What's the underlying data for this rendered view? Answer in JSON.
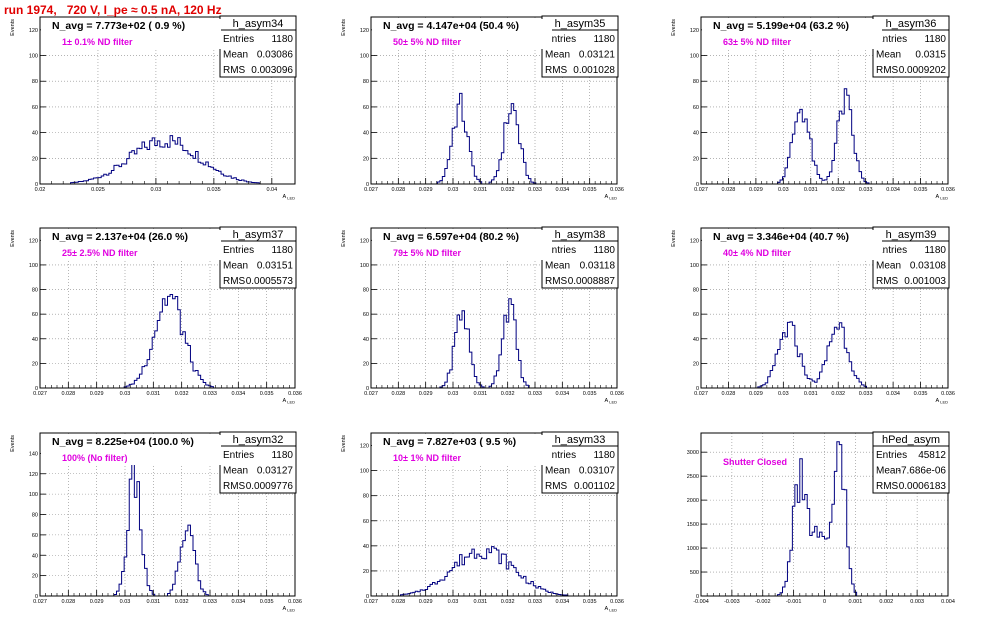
{
  "page": {
    "run_title": "run 1974,   720 V, I_pe ≈ 0.5 nA, 120 Hz",
    "colors": {
      "hist": "#000080",
      "title": "#e00000",
      "annotation": "#e000e0",
      "axis": "#000000",
      "grid": "#888888"
    }
  },
  "chart_data": [
    {
      "type": "histogram",
      "name": "h_asym34",
      "stats": {
        "Entries": "1180",
        "Mean": "0.03086",
        "RMS": "0.003096"
      },
      "navg": "N_avg = 7.773e+02 ( 0.9 %)",
      "annotation": "1± 0.1% ND filter",
      "xlabel": "A_LED",
      "ylabel": "Events",
      "xlim": [
        0.02,
        0.042
      ],
      "ylim": [
        0,
        130
      ],
      "xticks": [
        0.02,
        0.025,
        0.03,
        0.035,
        0.04
      ],
      "xticklabels": [
        "0.02",
        "0.025",
        "0.03",
        "0.035",
        "0.04"
      ],
      "yticks": [
        0,
        20,
        40,
        60,
        80,
        100,
        120
      ],
      "yticklabels": [
        "0",
        "20",
        "40",
        "60",
        "80",
        "100",
        "120"
      ],
      "grid": true,
      "shape": {
        "peaks": [
          {
            "mu": 0.0308,
            "sigma": 0.003,
            "h": 34
          }
        ]
      }
    },
    {
      "type": "histogram",
      "name": "h_asym35",
      "stats": {
        "Entries": "1180",
        "Mean": "0.03121",
        "RMS": "0.001028"
      },
      "navg": "N_avg = 4.147e+04 (50.4 %)",
      "annotation": "50± 5% ND filter",
      "xlabel": "A_LED",
      "ylabel": "Events",
      "xlim": [
        0.027,
        0.036
      ],
      "ylim": [
        0,
        130
      ],
      "xticks": [
        0.027,
        0.028,
        0.029,
        0.03,
        0.031,
        0.032,
        0.033,
        0.034,
        0.035,
        0.036
      ],
      "xticklabels": [
        "0.027",
        "0.028",
        "0.029",
        "0.03",
        "0.031",
        "0.032",
        "0.033",
        "0.034",
        "0.035",
        "0.036"
      ],
      "yticks": [
        0,
        20,
        40,
        60,
        80,
        100,
        120
      ],
      "yticklabels": [
        "0",
        "20",
        "40",
        "60",
        "80",
        "100",
        "120"
      ],
      "grid": true,
      "shape": {
        "peaks": [
          {
            "mu": 0.03025,
            "sigma": 0.00028,
            "h": 60
          },
          {
            "mu": 0.03215,
            "sigma": 0.00028,
            "h": 60
          }
        ]
      }
    },
    {
      "type": "histogram",
      "name": "h_asym36",
      "stats": {
        "Entries": "1180",
        "Mean": "0.0315",
        "RMS": "0.0009202"
      },
      "navg": "N_avg = 5.199e+04 (63.2 %)",
      "annotation": "63± 5% ND filter",
      "xlabel": "A_LED",
      "ylabel": "Events",
      "xlim": [
        0.027,
        0.036
      ],
      "ylim": [
        0,
        130
      ],
      "xticks": [
        0.027,
        0.028,
        0.029,
        0.03,
        0.031,
        0.032,
        0.033,
        0.034,
        0.035,
        0.036
      ],
      "xticklabels": [
        "0.027",
        "0.028",
        "0.029",
        "0.03",
        "0.031",
        "0.032",
        "0.033",
        "0.034",
        "0.035",
        "0.036"
      ],
      "yticks": [
        0,
        20,
        40,
        60,
        80,
        100,
        120
      ],
      "yticklabels": [
        "0",
        "20",
        "40",
        "60",
        "80",
        "100",
        "120"
      ],
      "grid": true,
      "shape": {
        "peaks": [
          {
            "mu": 0.03065,
            "sigma": 0.0003,
            "h": 60
          },
          {
            "mu": 0.03225,
            "sigma": 0.00028,
            "h": 64
          }
        ]
      }
    },
    {
      "type": "histogram",
      "name": "h_asym37",
      "stats": {
        "Entries": "1180",
        "Mean": "0.03151",
        "RMS": "0.0005573"
      },
      "navg": "N_avg = 2.137e+04 (26.0 %)",
      "annotation": "25± 2.5% ND filter",
      "xlabel": "A_LED",
      "ylabel": "Events",
      "xlim": [
        0.027,
        0.036
      ],
      "ylim": [
        0,
        130
      ],
      "xticks": [
        0.027,
        0.028,
        0.029,
        0.03,
        0.031,
        0.032,
        0.033,
        0.034,
        0.035,
        0.036
      ],
      "xticklabels": [
        "0.027",
        "0.028",
        "0.029",
        "0.03",
        "0.031",
        "0.032",
        "0.033",
        "0.034",
        "0.035",
        "0.036"
      ],
      "yticks": [
        0,
        20,
        40,
        60,
        80,
        100,
        120
      ],
      "yticklabels": [
        "0",
        "20",
        "40",
        "60",
        "80",
        "100",
        "120"
      ],
      "grid": true,
      "shape": {
        "peaks": [
          {
            "mu": 0.03155,
            "sigma": 0.00052,
            "h": 74
          }
        ]
      }
    },
    {
      "type": "histogram",
      "name": "h_asym38",
      "stats": {
        "Entries": "1180",
        "Mean": "0.03118",
        "RMS": "0.0008887"
      },
      "navg": "N_avg = 6.597e+04 (80.2 %)",
      "annotation": "79± 5% ND filter",
      "xlabel": "A_LED",
      "ylabel": "Events",
      "xlim": [
        0.027,
        0.036
      ],
      "ylim": [
        0,
        130
      ],
      "xticks": [
        0.027,
        0.028,
        0.029,
        0.03,
        0.031,
        0.032,
        0.033,
        0.034,
        0.035,
        0.036
      ],
      "xticklabels": [
        "0.027",
        "0.028",
        "0.029",
        "0.03",
        "0.031",
        "0.032",
        "0.033",
        "0.034",
        "0.035",
        "0.036"
      ],
      "yticks": [
        0,
        20,
        40,
        60,
        80,
        100,
        120
      ],
      "yticklabels": [
        "0",
        "20",
        "40",
        "60",
        "80",
        "100",
        "120"
      ],
      "grid": true,
      "shape": {
        "peaks": [
          {
            "mu": 0.03033,
            "sigma": 0.00026,
            "h": 62
          },
          {
            "mu": 0.03205,
            "sigma": 0.00025,
            "h": 68
          }
        ]
      }
    },
    {
      "type": "histogram",
      "name": "h_asym39",
      "stats": {
        "Entries": "1180",
        "Mean": "0.03108",
        "RMS": "0.001003"
      },
      "navg": "N_avg = 3.346e+04 (40.7 %)",
      "annotation": "40± 4% ND filter",
      "xlabel": "A_LED",
      "ylabel": "Events",
      "xlim": [
        0.027,
        0.036
      ],
      "ylim": [
        0,
        130
      ],
      "xticks": [
        0.027,
        0.028,
        0.029,
        0.03,
        0.031,
        0.032,
        0.033,
        0.034,
        0.035,
        0.036
      ],
      "xticklabels": [
        "0.027",
        "0.028",
        "0.029",
        "0.03",
        "0.031",
        "0.032",
        "0.033",
        "0.034",
        "0.035",
        "0.036"
      ],
      "yticks": [
        0,
        20,
        40,
        60,
        80,
        100,
        120
      ],
      "yticklabels": [
        "0",
        "20",
        "40",
        "60",
        "80",
        "100",
        "120"
      ],
      "grid": true,
      "shape": {
        "peaks": [
          {
            "mu": 0.0302,
            "sigma": 0.00038,
            "h": 48
          },
          {
            "mu": 0.032,
            "sigma": 0.00036,
            "h": 52
          }
        ]
      }
    },
    {
      "type": "histogram",
      "name": "h_asym32",
      "stats": {
        "Entries": "1180",
        "Mean": "0.03127",
        "RMS": "0.0009776"
      },
      "navg": "N_avg = 8.225e+04 (100.0 %)",
      "annotation": "100% (No filter)",
      "xlabel": "A_LED",
      "ylabel": "Events",
      "xlim": [
        0.027,
        0.036
      ],
      "ylim": [
        0,
        160
      ],
      "xticks": [
        0.027,
        0.028,
        0.029,
        0.03,
        0.031,
        0.032,
        0.033,
        0.034,
        0.035,
        0.036
      ],
      "xticklabels": [
        "0.027",
        "0.028",
        "0.029",
        "0.03",
        "0.031",
        "0.032",
        "0.033",
        "0.034",
        "0.035",
        "0.036"
      ],
      "yticks": [
        0,
        20,
        40,
        60,
        80,
        100,
        120,
        140
      ],
      "yticklabels": [
        "0",
        "20",
        "40",
        "60",
        "80",
        "100",
        "120",
        "140"
      ],
      "grid": true,
      "shape": {
        "peaks": [
          {
            "mu": 0.03033,
            "sigma": 0.00023,
            "h": 115
          },
          {
            "mu": 0.0322,
            "sigma": 0.00025,
            "h": 68
          }
        ]
      }
    },
    {
      "type": "histogram",
      "name": "h_asym33",
      "stats": {
        "Entries": "1180",
        "Mean": "0.03107",
        "RMS": "0.001102"
      },
      "navg": "N_avg = 7.827e+03 ( 9.5 %)",
      "annotation": "10± 1% ND filter",
      "xlabel": "A_LED",
      "ylabel": "Events",
      "xlim": [
        0.027,
        0.036
      ],
      "ylim": [
        0,
        130
      ],
      "xticks": [
        0.027,
        0.028,
        0.029,
        0.03,
        0.031,
        0.032,
        0.033,
        0.034,
        0.035,
        0.036
      ],
      "xticklabels": [
        "0.027",
        "0.028",
        "0.029",
        "0.03",
        "0.031",
        "0.032",
        "0.033",
        "0.034",
        "0.035",
        "0.036"
      ],
      "yticks": [
        0,
        20,
        40,
        60,
        80,
        100,
        120
      ],
      "yticklabels": [
        "0",
        "20",
        "40",
        "60",
        "80",
        "100",
        "120"
      ],
      "grid": true,
      "shape": {
        "peaks": [
          {
            "mu": 0.0311,
            "sigma": 0.0011,
            "h": 37
          }
        ]
      }
    },
    {
      "type": "histogram",
      "name": "hPed_asym",
      "stats": {
        "Entries": "45812",
        "Mean": "-7.686e-06",
        "RMS": "0.0006183"
      },
      "navg": "",
      "annotation": "Shutter Closed",
      "xlabel": "",
      "ylabel": "",
      "xlim": [
        -0.004,
        0.004
      ],
      "ylim": [
        0,
        3400
      ],
      "xticks": [
        -0.004,
        -0.003,
        -0.002,
        -0.001,
        0,
        0.001,
        0.002,
        0.003,
        0.004
      ],
      "xticklabels": [
        "-0.004",
        "-0.003",
        "-0.002",
        "-0.001",
        "0",
        "0.001",
        "0.002",
        "0.003",
        "0.004"
      ],
      "yticks": [
        0,
        500,
        1000,
        1500,
        2000,
        2500,
        3000
      ],
      "yticklabels": [
        "0",
        "500",
        "1000",
        "1500",
        "2000",
        "2500",
        "3000"
      ],
      "grid": true,
      "shape": {
        "peaks": [
          {
            "mu": -0.00085,
            "sigma": 0.0002,
            "h": 1900
          },
          {
            "mu": -0.0003,
            "sigma": 0.0004,
            "h": 1300
          },
          {
            "mu": 0.0005,
            "sigma": 0.00018,
            "h": 3100
          }
        ]
      }
    }
  ]
}
